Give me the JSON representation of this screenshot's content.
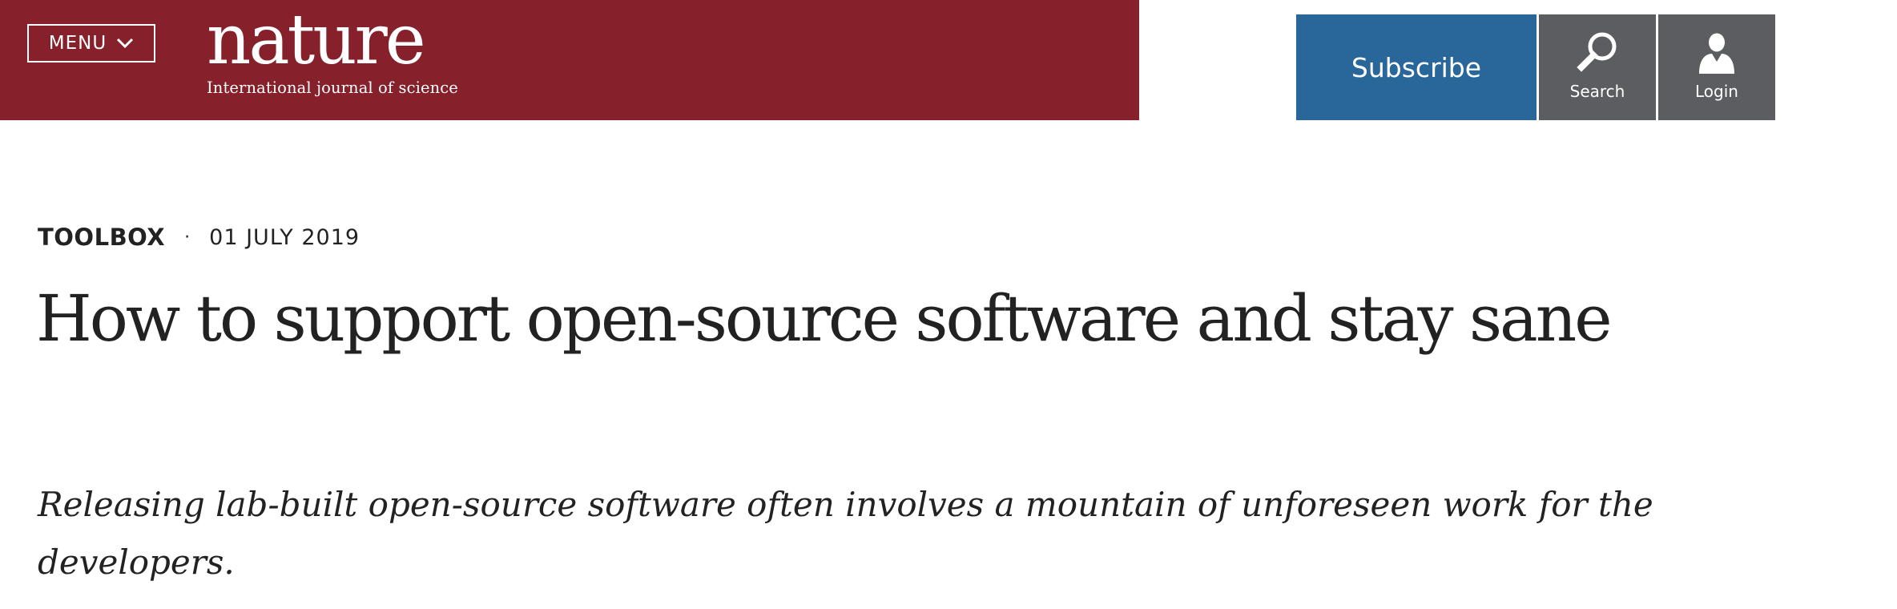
{
  "colors": {
    "brand": "#86202b",
    "subscribe": "#29679b",
    "tool": "#5c5d61"
  },
  "header": {
    "menu_label": "MENU",
    "logo": {
      "wordmark": "nature",
      "tagline": "International journal of science"
    },
    "subscribe_label": "Subscribe",
    "search_label": "Search",
    "login_label": "Login",
    "icons": [
      "chevron-down-icon",
      "search-icon",
      "user-icon"
    ]
  },
  "article": {
    "type": "TOOLBOX",
    "separator": "·",
    "date": "01 JULY 2019",
    "title": "How to support open-source software and stay sane",
    "standfirst": "Releasing lab-built open-source software often involves a mountain of unforeseen work for the developers."
  }
}
